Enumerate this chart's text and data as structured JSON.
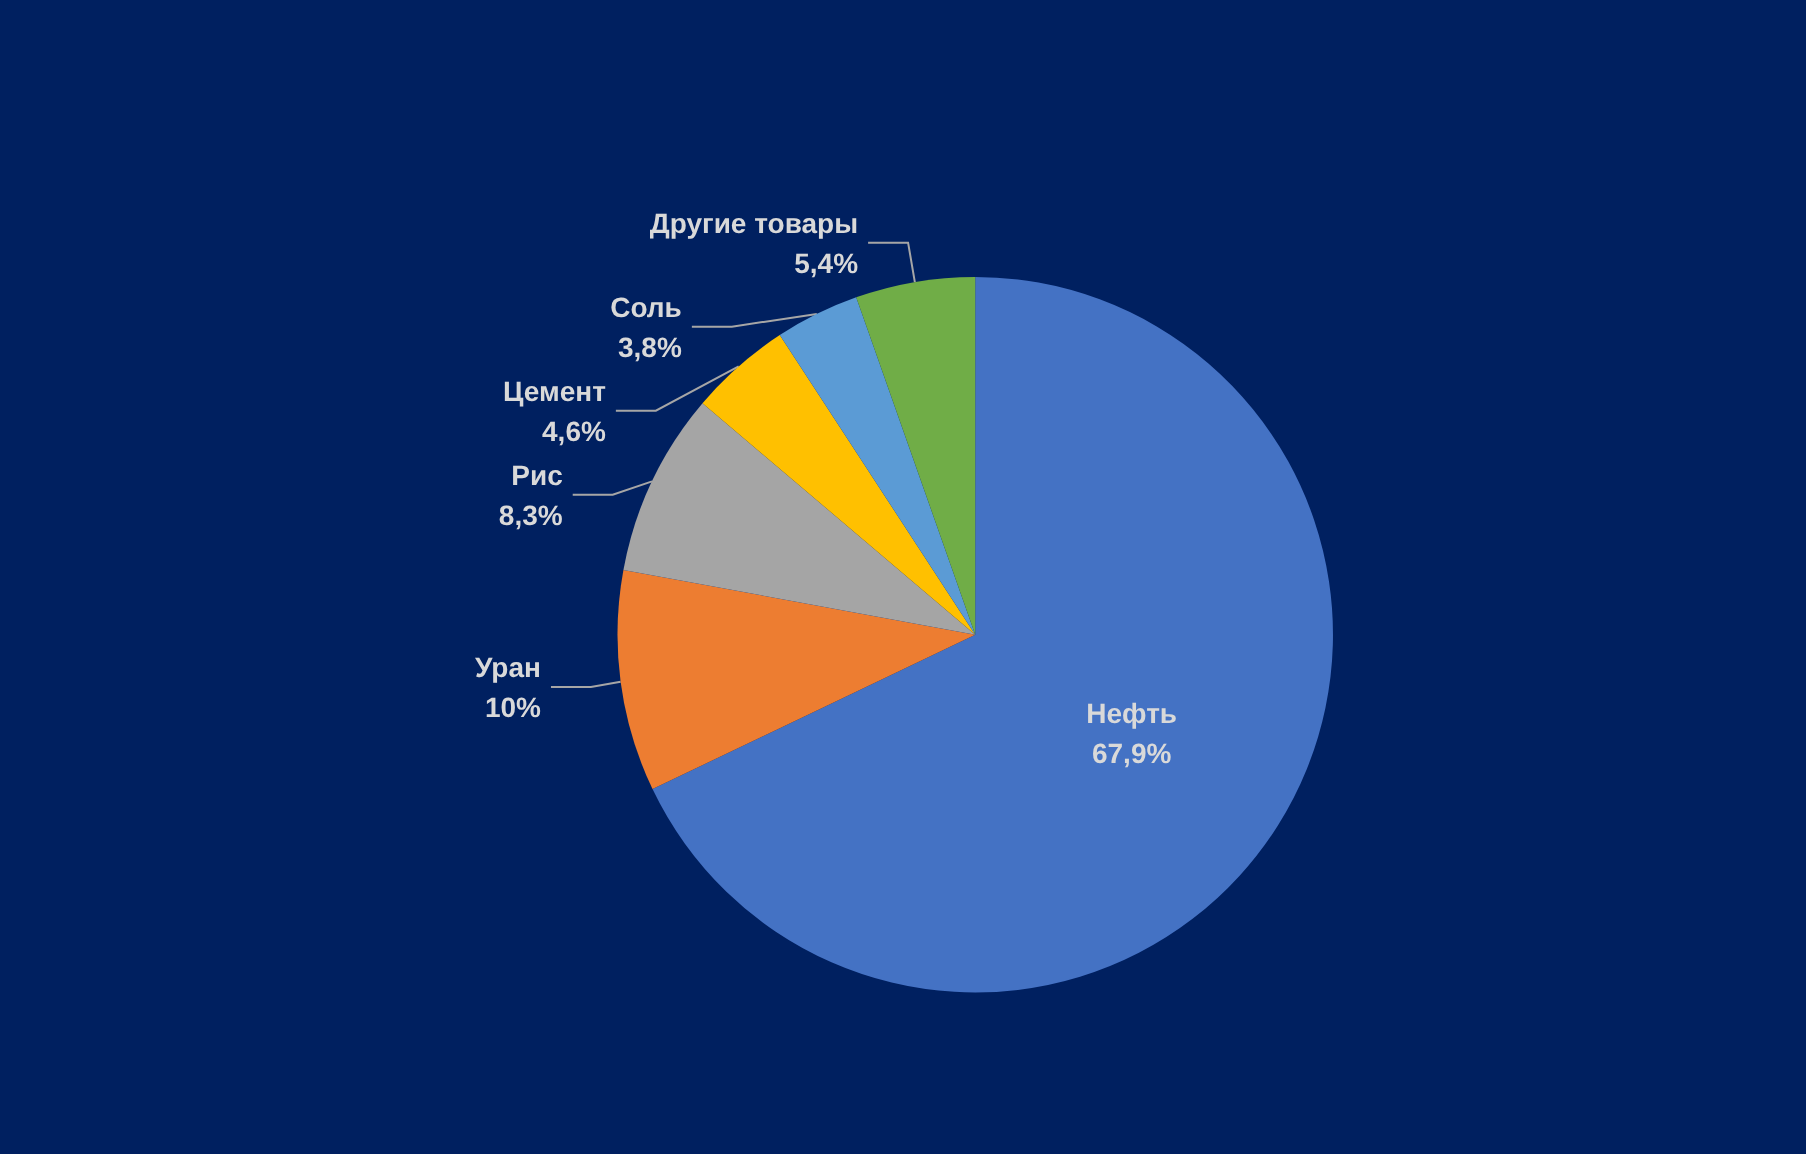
{
  "chart_data": {
    "type": "pie",
    "categories": [
      "Нефть",
      "Уран",
      "Рис",
      "Цемент",
      "Соль",
      "Другие товары"
    ],
    "values": [
      67.9,
      10,
      8.3,
      4.6,
      3.8,
      5.4
    ],
    "value_labels": [
      "67,9%",
      "10%",
      "8,3%",
      "4,6%",
      "3,8%",
      "5,4%"
    ],
    "colors": [
      "#4472c4",
      "#ed7d31",
      "#a5a5a5",
      "#ffc000",
      "#5b9bd5",
      "#70ad47"
    ],
    "legend": false
  }
}
